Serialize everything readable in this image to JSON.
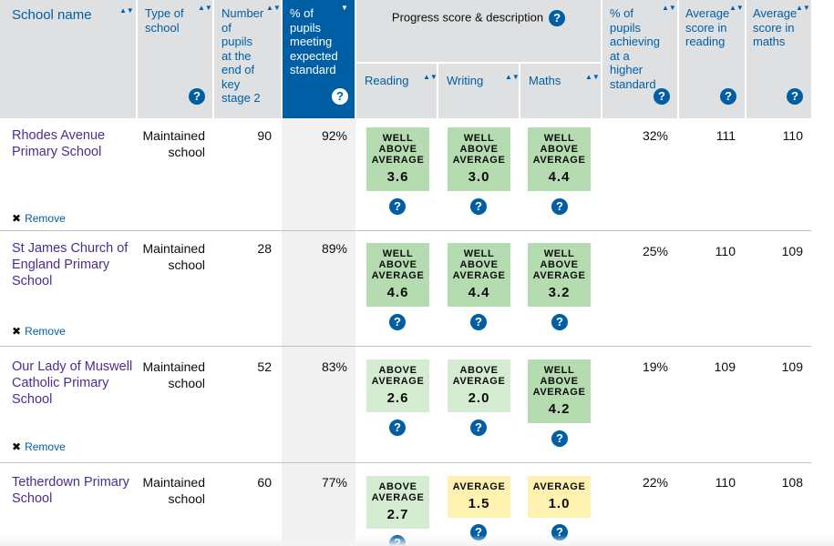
{
  "headers": {
    "school_name": "School name",
    "type": "Type of school",
    "pupils": "Number of pupils at the end of key stage 2",
    "meeting": "% of pupils meeting expected standard",
    "progress": "Progress score & description",
    "reading": "Reading",
    "writing": "Writing",
    "maths": "Maths",
    "higher": "% of pupils achieving at a higher standard",
    "avg_reading": "Average score in reading",
    "avg_maths": "Average score in maths"
  },
  "icons": {
    "sort": "sort-arrows-icon",
    "sort_active": "sort-desc-icon",
    "help": "question-mark-icon",
    "remove": "close-icon"
  },
  "glyphs": {
    "sort": "▲▼",
    "sort_active": "▼",
    "help": "?",
    "remove": "✖"
  },
  "remove_label": "Remove",
  "rows": [
    {
      "school": "Rhodes Avenue Primary School",
      "type": "Maintained school",
      "pupils": "90",
      "meeting": "92%",
      "reading": {
        "label": "WELL ABOVE AVERAGE",
        "score": "3.6",
        "level": "well-above"
      },
      "writing": {
        "label": "WELL ABOVE AVERAGE",
        "score": "3.0",
        "level": "well-above"
      },
      "maths": {
        "label": "WELL ABOVE AVERAGE",
        "score": "4.4",
        "level": "well-above"
      },
      "higher": "32%",
      "avg_reading": "111",
      "avg_maths": "110"
    },
    {
      "school": "St James Church of England Primary School",
      "type": "Maintained school",
      "pupils": "28",
      "meeting": "89%",
      "reading": {
        "label": "WELL ABOVE AVERAGE",
        "score": "4.6",
        "level": "well-above"
      },
      "writing": {
        "label": "WELL ABOVE AVERAGE",
        "score": "4.4",
        "level": "well-above"
      },
      "maths": {
        "label": "WELL ABOVE AVERAGE",
        "score": "3.2",
        "level": "well-above"
      },
      "higher": "25%",
      "avg_reading": "110",
      "avg_maths": "109"
    },
    {
      "school": "Our Lady of Muswell Catholic Primary School",
      "type": "Maintained school",
      "pupils": "52",
      "meeting": "83%",
      "reading": {
        "label": "ABOVE AVERAGE",
        "score": "2.6",
        "level": "above"
      },
      "writing": {
        "label": "ABOVE AVERAGE",
        "score": "2.0",
        "level": "above"
      },
      "maths": {
        "label": "WELL ABOVE AVERAGE",
        "score": "4.2",
        "level": "well-above"
      },
      "higher": "19%",
      "avg_reading": "109",
      "avg_maths": "109"
    },
    {
      "school": "Tetherdown Primary School",
      "type": "Maintained school",
      "pupils": "60",
      "meeting": "77%",
      "reading": {
        "label": "ABOVE AVERAGE",
        "score": "2.7",
        "level": "above"
      },
      "writing": {
        "label": "AVERAGE",
        "score": "1.5",
        "level": "average"
      },
      "maths": {
        "label": "AVERAGE",
        "score": "1.0",
        "level": "average"
      },
      "higher": "22%",
      "avg_reading": "110",
      "avg_maths": "108"
    }
  ]
}
